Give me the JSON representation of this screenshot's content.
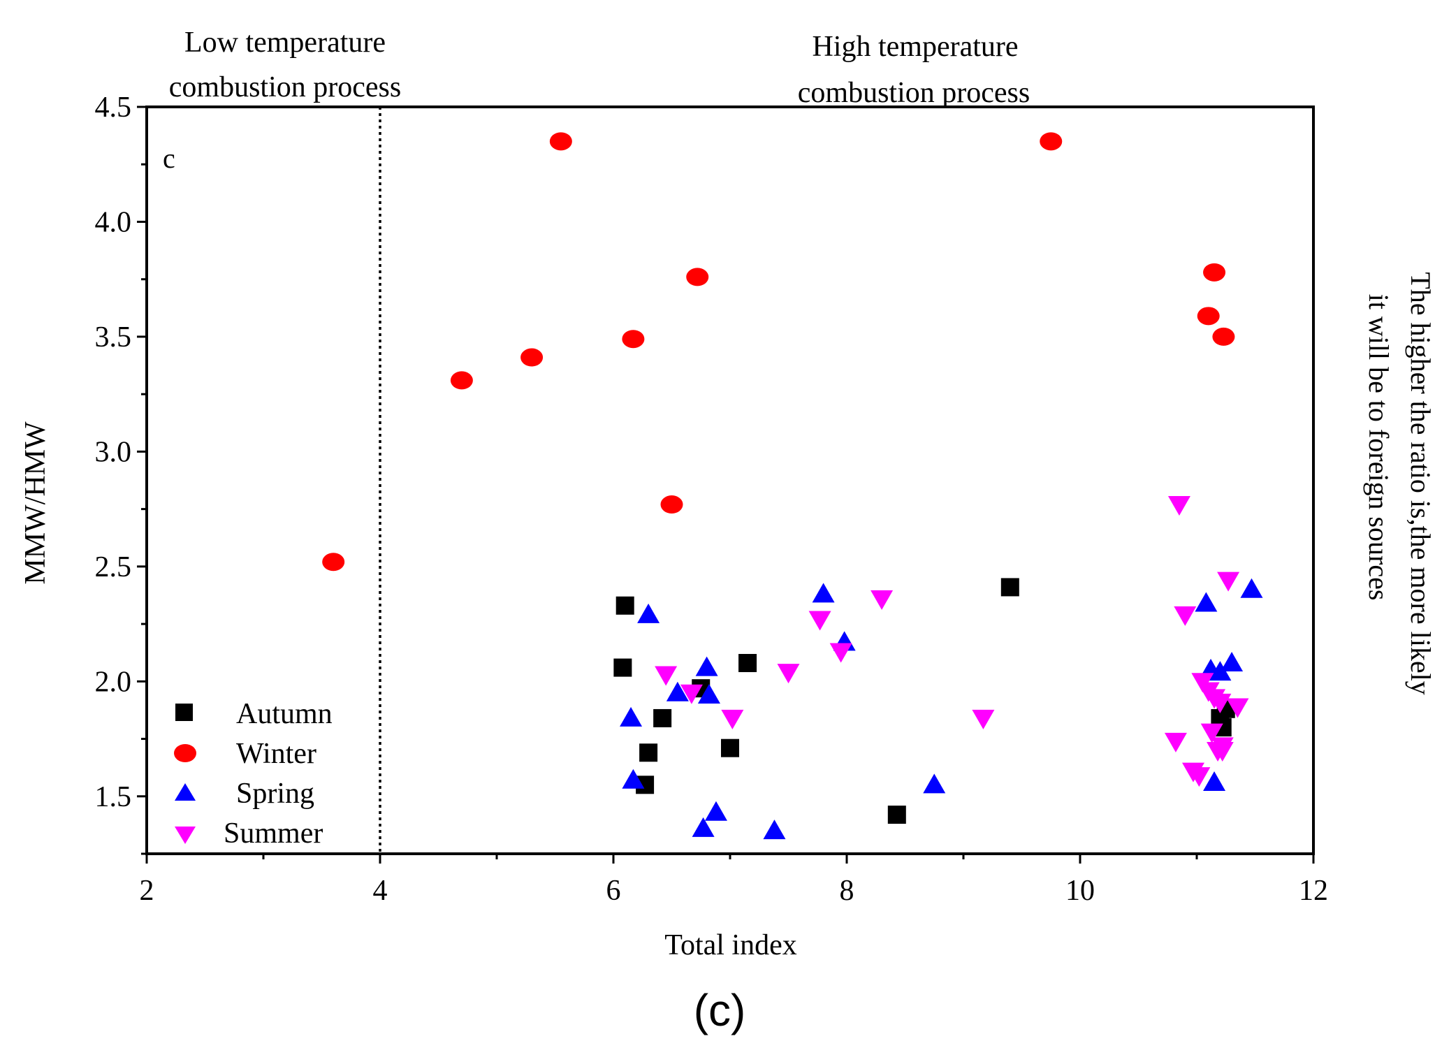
{
  "chart_data": {
    "type": "scatter",
    "panel_label": "c",
    "caption": "(c)",
    "xlabel": "Total index",
    "ylabel": "MMW/HMW",
    "xlim": [
      2,
      12
    ],
    "ylim": [
      1.25,
      4.5
    ],
    "xticks": [
      2,
      4,
      6,
      8,
      10,
      12
    ],
    "xtick_labels": [
      "2",
      "4",
      "6",
      "8",
      "10",
      "12"
    ],
    "yticks": [
      1.5,
      2.0,
      2.5,
      3.0,
      3.5,
      4.0,
      4.5
    ],
    "ytick_labels": [
      "1.5",
      "2.0",
      "2.5",
      "3.0",
      "3.5",
      "4.0",
      "4.5"
    ],
    "threshold_x": 4,
    "region_labels": {
      "low": [
        "Low temperature",
        "combustion process"
      ],
      "high": [
        "High temperature",
        "combustion process"
      ]
    },
    "side_note": [
      "The higher the ratio is,the more likely",
      "it will be to foreign sources"
    ],
    "colors": {
      "Autumn": "#000000",
      "Winter": "#ff0000",
      "Spring": "#0000ff",
      "Summer": "#ff00ff"
    },
    "legend": [
      "Autumn",
      "Winter",
      "Spring",
      "Summer"
    ],
    "series": [
      {
        "name": "Autumn",
        "marker": "square",
        "x": [
          6.1,
          6.08,
          6.27,
          6.3,
          6.42,
          6.75,
          7.0,
          7.15,
          8.43,
          9.4,
          11.2,
          11.22,
          11.25
        ],
        "y": [
          2.33,
          2.06,
          1.55,
          1.69,
          1.84,
          1.97,
          1.71,
          2.08,
          1.42,
          2.41,
          1.84,
          1.8,
          1.88
        ]
      },
      {
        "name": "Winter",
        "marker": "circle",
        "x": [
          3.6,
          4.7,
          5.3,
          5.55,
          6.17,
          6.5,
          6.72,
          9.75,
          11.1,
          11.15,
          11.23
        ],
        "y": [
          2.52,
          3.31,
          3.41,
          4.35,
          3.49,
          2.77,
          3.76,
          4.35,
          3.59,
          3.78,
          3.5
        ]
      },
      {
        "name": "Spring",
        "marker": "triangle-up",
        "x": [
          6.3,
          6.15,
          6.17,
          6.55,
          6.8,
          6.82,
          6.77,
          6.88,
          7.38,
          7.8,
          7.98,
          8.75,
          11.08,
          11.12,
          11.2,
          11.3,
          11.47,
          11.15
        ],
        "y": [
          2.29,
          1.84,
          1.57,
          1.95,
          2.06,
          1.94,
          1.36,
          1.43,
          1.35,
          2.38,
          2.17,
          1.55,
          2.34,
          2.05,
          2.04,
          2.08,
          2.4,
          1.56
        ]
      },
      {
        "name": "Summer",
        "marker": "triangle-down",
        "x": [
          6.45,
          6.67,
          7.02,
          7.5,
          7.77,
          7.95,
          8.3,
          9.17,
          10.85,
          10.9,
          10.82,
          10.97,
          11.05,
          11.1,
          11.15,
          11.2,
          11.18,
          11.22,
          11.27,
          11.35,
          11.13,
          11.22,
          11.02
        ],
        "y": [
          2.03,
          1.95,
          1.84,
          2.04,
          2.27,
          2.13,
          2.36,
          1.84,
          2.77,
          2.29,
          1.74,
          1.61,
          2.0,
          1.96,
          1.93,
          1.91,
          1.7,
          1.7,
          2.44,
          1.89,
          1.78,
          1.72,
          1.59
        ]
      }
    ]
  }
}
